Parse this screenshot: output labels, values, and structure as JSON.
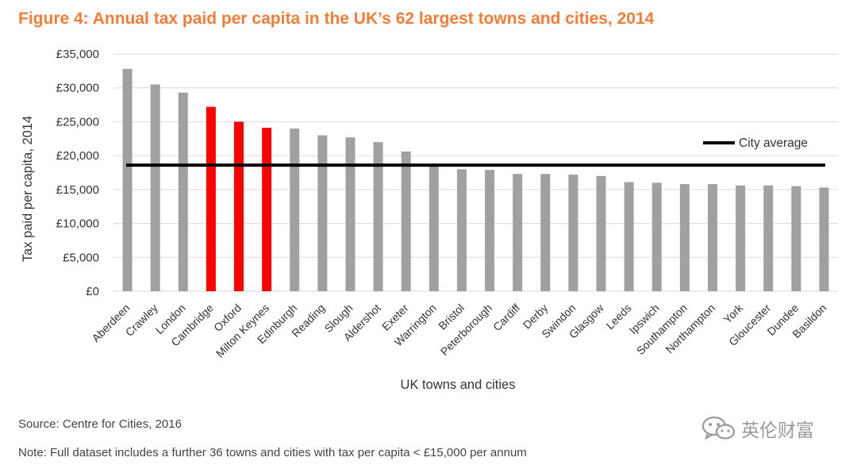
{
  "title": "Figure 4: Annual tax paid per capita in the UK’s 62 largest towns and cities, 2014",
  "source": "Source: Centre for Cities, 2016",
  "note": "Note: Full dataset includes a further 36 towns and cities with tax per capita < £15,000 per annum",
  "watermark": "英伦财富",
  "colors": {
    "title": "#f47c36",
    "bar": "#a0a0a0",
    "highlight": "#ff0000",
    "average": "#000000",
    "grid": "#d9d9d9"
  },
  "chart_data": {
    "type": "bar",
    "title": "Figure 4: Annual tax paid per capita in the UK’s 62 largest towns and cities, 2014",
    "xlabel": "UK towns and cities",
    "ylabel": "Tax paid per capita, 2014",
    "ylim": [
      0,
      35000
    ],
    "yticks": [
      0,
      5000,
      10000,
      15000,
      20000,
      25000,
      30000,
      35000
    ],
    "ytick_labels": [
      "£0",
      "£5,000",
      "£10,000",
      "£15,000",
      "£20,000",
      "£25,000",
      "£30,000",
      "£35,000"
    ],
    "grid": true,
    "categories": [
      "Aberdeen",
      "Crawley",
      "London",
      "Cambridge",
      "Oxford",
      "Milton Keynes",
      "Edinburgh",
      "Reading",
      "Slough",
      "Aldershot",
      "Exeter",
      "Warrington",
      "Bristol",
      "Peterborough",
      "Cardiff",
      "Derby",
      "Swindon",
      "Glasgow",
      "Leeds",
      "Ipswich",
      "Southampton",
      "Northampton",
      "York",
      "Gloucester",
      "Dundee",
      "Basildon"
    ],
    "values": [
      32800,
      30500,
      29300,
      27200,
      25000,
      24100,
      24000,
      23000,
      22700,
      22000,
      20600,
      18500,
      18000,
      17900,
      17300,
      17300,
      17200,
      17000,
      16100,
      16000,
      15800,
      15800,
      15600,
      15600,
      15500,
      15300
    ],
    "highlighted": [
      "Cambridge",
      "Oxford",
      "Milton Keynes"
    ],
    "average": 18600,
    "legend": {
      "label": "City average",
      "position": "right"
    }
  }
}
